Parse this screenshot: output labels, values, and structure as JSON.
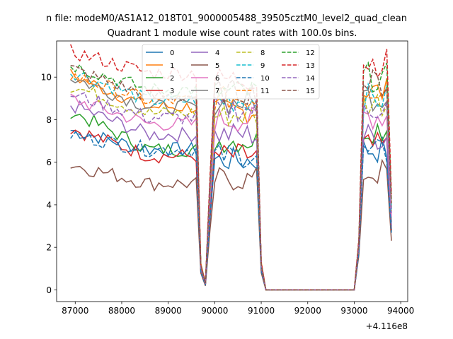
{
  "chart_data": {
    "type": "line",
    "suptitle": "n file: modeM0/AS1A12_018T01_9000005488_39505cztM0_level2_quad_clean",
    "title": "Quadrant 1 module wise count rates with 100.0s bins.",
    "xlabel": "",
    "ylabel": "",
    "x_offset_label": "+4.116e8",
    "x_offset": 411600000,
    "xlim": [
      86600,
      94150
    ],
    "ylim": [
      -0.55,
      11.7
    ],
    "xticks": [
      87000,
      88000,
      89000,
      90000,
      91000,
      92000,
      93000,
      94000
    ],
    "yticks": [
      0,
      2,
      4,
      6,
      8,
      10
    ],
    "legend_position": "top-center",
    "segments": [
      {
        "x_start": 86900,
        "x_end": 89600,
        "step": 100
      },
      {
        "x_start": 89700,
        "x_end": 91100,
        "step": 100
      },
      {
        "x_start": 91200,
        "x_end": 93000,
        "step": 100
      },
      {
        "x_start": 93100,
        "x_end": 93800,
        "step": 100
      }
    ],
    "series": [
      {
        "name": "0",
        "color": "#1f77b4",
        "dash": false,
        "base": 6.6,
        "early": 7.5,
        "block2": 6.1,
        "block4": 6.6,
        "dip": 0.6
      },
      {
        "name": "1",
        "color": "#ff7f0e",
        "dash": false,
        "base": 8.6,
        "early": 10.1,
        "block2": 8.4,
        "block4": 9.3,
        "dip": 0.8
      },
      {
        "name": "2",
        "color": "#2ca02c",
        "dash": false,
        "base": 6.6,
        "early": 8.4,
        "block2": 7.0,
        "block4": 7.6,
        "dip": 0.5
      },
      {
        "name": "3",
        "color": "#d62728",
        "dash": false,
        "base": 6.3,
        "early": 7.6,
        "block2": 6.3,
        "block4": 6.7,
        "dip": 0.4
      },
      {
        "name": "4",
        "color": "#9467bd",
        "dash": false,
        "base": 7.3,
        "early": 8.7,
        "block2": 7.3,
        "block4": 7.2,
        "dip": 0.6
      },
      {
        "name": "5",
        "color": "#8c564b",
        "dash": false,
        "base": 5.0,
        "early": 5.9,
        "block2": 5.2,
        "block4": 5.5,
        "dip": 0.3
      },
      {
        "name": "6",
        "color": "#e377c2",
        "dash": false,
        "base": 7.8,
        "early": 9.0,
        "block2": 8.0,
        "block4": 8.2,
        "dip": 0.6
      },
      {
        "name": "7",
        "color": "#7f7f7f",
        "dash": false,
        "base": 8.6,
        "early": 10.0,
        "block2": 8.8,
        "block4": 9.1,
        "dip": 0.7
      },
      {
        "name": "8",
        "color": "#bcbd22",
        "dash": true,
        "base": 8.3,
        "early": 9.6,
        "block2": 8.2,
        "block4": 8.8,
        "dip": 0.6
      },
      {
        "name": "9",
        "color": "#17becf",
        "dash": true,
        "base": 8.9,
        "early": 10.3,
        "block2": 8.9,
        "block4": 9.0,
        "dip": 0.7
      },
      {
        "name": "10",
        "color": "#1f77b4",
        "dash": true,
        "base": 6.6,
        "early": 7.3,
        "block2": 6.3,
        "block4": 6.4,
        "dip": 0.4
      },
      {
        "name": "11",
        "color": "#ff7f0e",
        "dash": true,
        "base": 8.9,
        "early": 10.1,
        "block2": 9.0,
        "block4": 9.5,
        "dip": 0.7
      },
      {
        "name": "12",
        "color": "#2ca02c",
        "dash": true,
        "base": 9.4,
        "early": 10.6,
        "block2": 9.3,
        "block4": 10.0,
        "dip": 0.7
      },
      {
        "name": "13",
        "color": "#d62728",
        "dash": true,
        "base": 10.2,
        "early": 11.2,
        "block2": 9.9,
        "block4": 10.7,
        "dip": 0.8
      },
      {
        "name": "14",
        "color": "#9467bd",
        "dash": true,
        "base": 8.1,
        "early": 9.2,
        "block2": 8.5,
        "block4": 8.6,
        "dip": 0.6
      },
      {
        "name": "15",
        "color": "#8c564b",
        "dash": true,
        "base": 9.1,
        "early": 10.4,
        "block2": 9.3,
        "block4": 9.7,
        "dip": 0.7
      }
    ]
  }
}
